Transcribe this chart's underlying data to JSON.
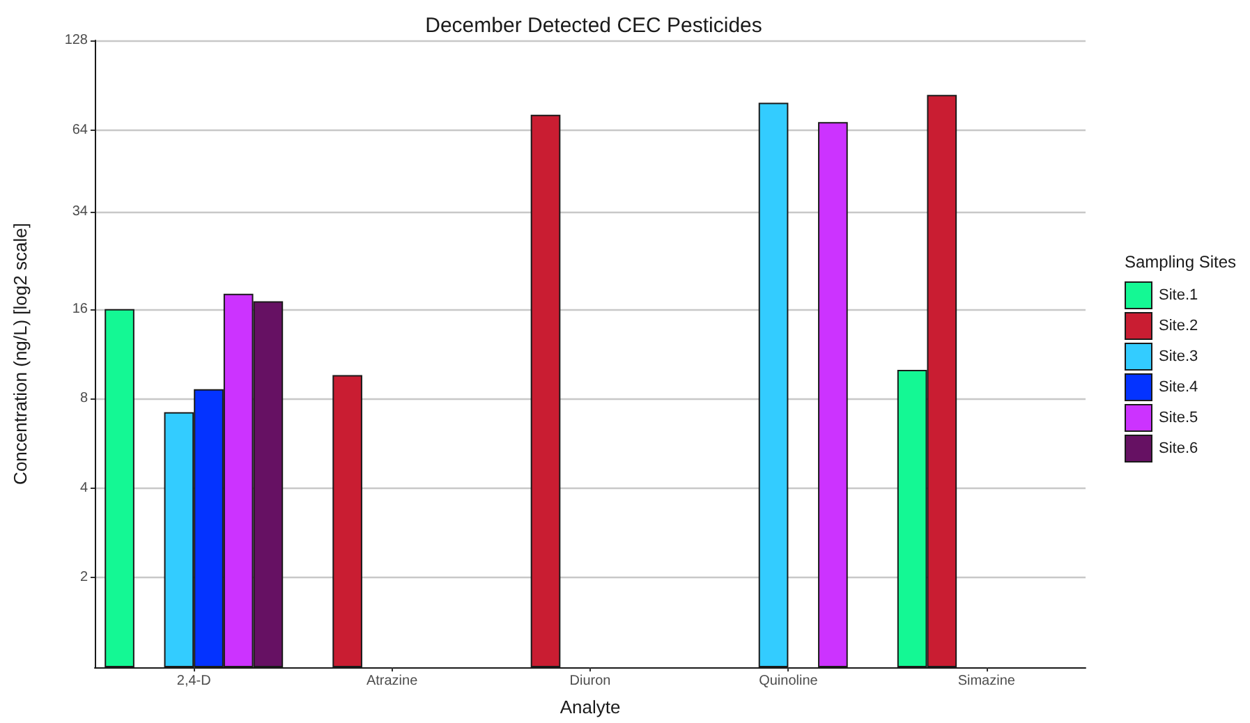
{
  "chart_data": {
    "type": "bar",
    "title": "December Detected CEC Pesticides",
    "xlabel": "Analyte",
    "ylabel": "Concentration (ng/L) [log2 scale]",
    "legend_title": "Sampling Sites",
    "categories": [
      "2,4-D",
      "Atrazine",
      "Diuron",
      "Quinoline",
      "Simazine"
    ],
    "series": [
      {
        "name": "Site.1",
        "color": "#14f894",
        "values": [
          16,
          null,
          null,
          null,
          10
        ]
      },
      {
        "name": "Site.2",
        "color": "#c91d32",
        "values": [
          null,
          9.6,
          72,
          null,
          84
        ]
      },
      {
        "name": "Site.3",
        "color": "#33ccff",
        "values": [
          7.2,
          null,
          null,
          79,
          null
        ]
      },
      {
        "name": "Site.4",
        "color": "#0433ff",
        "values": [
          8.6,
          null,
          null,
          null,
          null
        ]
      },
      {
        "name": "Site.5",
        "color": "#cc33ff",
        "values": [
          18,
          null,
          null,
          68,
          null
        ]
      },
      {
        "name": "Site.6",
        "color": "#661163",
        "values": [
          17,
          null,
          null,
          null,
          null
        ]
      }
    ],
    "ylim": [
      1,
      128
    ],
    "yticks": [
      2,
      4,
      8,
      16,
      34,
      64,
      128
    ],
    "log": "y",
    "grid": "y",
    "legend": "right"
  }
}
